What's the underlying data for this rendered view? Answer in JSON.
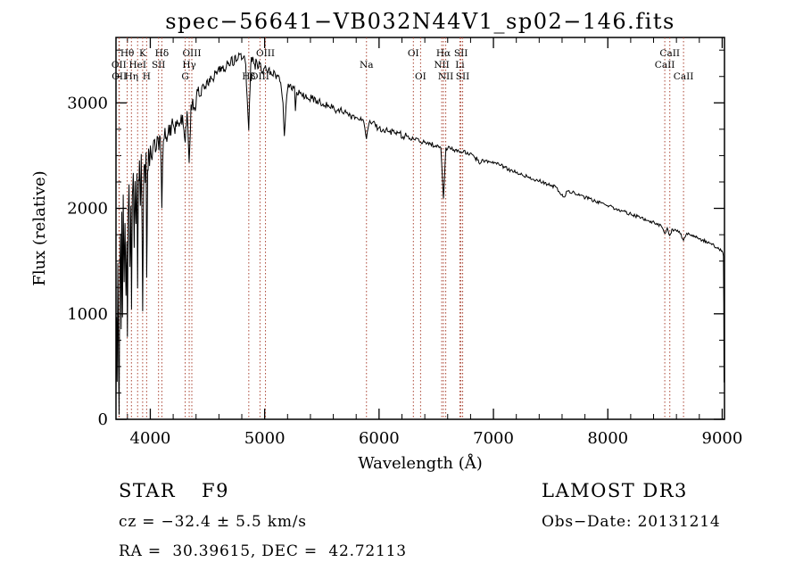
{
  "title": "spec−56641−VB032N44V1_sp02−146.fits",
  "annotations": {
    "class": "STAR",
    "subclass": "F9",
    "cz": "cz = −32.4 ± 5.5 km/s",
    "radec": "RA =  30.39615, DEC =  42.72113",
    "survey": "LAMOST DR3",
    "obs_date": "Obs−Date: 20131214"
  },
  "colors": {
    "background": "#ffffff",
    "spectrum": "#000000",
    "frame": "#000000",
    "line_marker": "#aa4433",
    "text": "#000000"
  },
  "chart_data": {
    "type": "line",
    "title": "spec−56641−VB032N44V1_sp02−146.fits",
    "xlabel": "Wavelength (Å)",
    "ylabel": "Flux (relative)",
    "xlim": [
      3700,
      9020
    ],
    "ylim": [
      0,
      3620
    ],
    "x_ticks": [
      4000,
      5000,
      6000,
      7000,
      8000,
      9000
    ],
    "y_ticks": [
      0,
      1000,
      2000,
      3000
    ],
    "x_minor_step": 200,
    "y_minor_step": 250,
    "grid": false,
    "legend": false,
    "spectral_lines": [
      {
        "wavelength": 3726,
        "label": "OII",
        "row": 2
      },
      {
        "wavelength": 3729,
        "label": "OII",
        "row": 3
      },
      {
        "wavelength": 3798,
        "label": "Hθ",
        "row": 1
      },
      {
        "wavelength": 3835,
        "label": "Hη",
        "row": 3
      },
      {
        "wavelength": 3889,
        "label": "HeI",
        "row": 2
      },
      {
        "wavelength": 3933,
        "label": "K",
        "row": 1
      },
      {
        "wavelength": 3968,
        "label": "H",
        "row": 3
      },
      {
        "wavelength": 4072,
        "label": "SII",
        "row": 2
      },
      {
        "wavelength": 4101,
        "label": "Hδ",
        "row": 1
      },
      {
        "wavelength": 4305,
        "label": "G",
        "row": 3
      },
      {
        "wavelength": 4340,
        "label": "Hγ",
        "row": 2
      },
      {
        "wavelength": 4363,
        "label": "OIII",
        "row": 1
      },
      {
        "wavelength": 4861,
        "label": "Hβ",
        "row": 3
      },
      {
        "wavelength": 4959,
        "label": "OIII",
        "row": 3
      },
      {
        "wavelength": 5007,
        "label": "OIII",
        "row": 1
      },
      {
        "wavelength": 5890,
        "label": "Na",
        "row": 2
      },
      {
        "wavelength": 6300,
        "label": "OI",
        "row": 1
      },
      {
        "wavelength": 6363,
        "label": "OI",
        "row": 3
      },
      {
        "wavelength": 6548,
        "label": "NII",
        "row": 2
      },
      {
        "wavelength": 6563,
        "label": "Hα",
        "row": 1
      },
      {
        "wavelength": 6583,
        "label": "NII",
        "row": 3
      },
      {
        "wavelength": 6707,
        "label": "Li",
        "row": 2
      },
      {
        "wavelength": 6716,
        "label": "SII",
        "row": 1
      },
      {
        "wavelength": 6731,
        "label": "SII",
        "row": 3
      },
      {
        "wavelength": 8498,
        "label": "CaII",
        "row": 2
      },
      {
        "wavelength": 8542,
        "label": "CaII",
        "row": 1
      },
      {
        "wavelength": 8662,
        "label": "CaII",
        "row": 3
      }
    ],
    "noise": {
      "seed": 12,
      "amplitude_regions": [
        {
          "x_max": 4000,
          "amp": 120
        },
        {
          "x_max": 4400,
          "amp": 80
        },
        {
          "x_max": 5000,
          "amp": 55
        },
        {
          "x_max": 5600,
          "amp": 40
        },
        {
          "x_max": 6300,
          "amp": 30
        },
        {
          "x_max": 7000,
          "amp": 24
        },
        {
          "x_max": 8000,
          "amp": 18
        },
        {
          "x_max": 9020,
          "amp": 16
        }
      ]
    },
    "series": [
      {
        "name": "spectrum",
        "color": "#000000",
        "points": [
          [
            3700,
            200
          ],
          [
            3705,
            1000
          ],
          [
            3710,
            350
          ],
          [
            3716,
            1450
          ],
          [
            3722,
            600
          ],
          [
            3727,
            80
          ],
          [
            3733,
            1250
          ],
          [
            3739,
            1750
          ],
          [
            3745,
            850
          ],
          [
            3751,
            1950
          ],
          [
            3757,
            1000
          ],
          [
            3763,
            2100
          ],
          [
            3771,
            1300
          ],
          [
            3779,
            1850
          ],
          [
            3787,
            1150
          ],
          [
            3794,
            1650
          ],
          [
            3800,
            800
          ],
          [
            3807,
            1950
          ],
          [
            3814,
            2200
          ],
          [
            3822,
            1450
          ],
          [
            3830,
            2050
          ],
          [
            3836,
            1050
          ],
          [
            3843,
            2150
          ],
          [
            3851,
            2350
          ],
          [
            3859,
            1650
          ],
          [
            3867,
            2250
          ],
          [
            3875,
            1850
          ],
          [
            3883,
            2350
          ],
          [
            3889,
            1250
          ],
          [
            3897,
            2300
          ],
          [
            3905,
            2450
          ],
          [
            3913,
            2050
          ],
          [
            3921,
            2500
          ],
          [
            3928,
            1850
          ],
          [
            3933,
            1050
          ],
          [
            3941,
            2150
          ],
          [
            3949,
            2450
          ],
          [
            3957,
            2250
          ],
          [
            3963,
            2550
          ],
          [
            3968,
            1350
          ],
          [
            3977,
            2350
          ],
          [
            3985,
            2600
          ],
          [
            3993,
            2400
          ],
          [
            4001,
            2600
          ],
          [
            4015,
            2480
          ],
          [
            4030,
            2640
          ],
          [
            4045,
            2520
          ],
          [
            4060,
            2680
          ],
          [
            4075,
            2560
          ],
          [
            4088,
            2680
          ],
          [
            4101,
            2020
          ],
          [
            4114,
            2660
          ],
          [
            4128,
            2740
          ],
          [
            4145,
            2640
          ],
          [
            4162,
            2780
          ],
          [
            4180,
            2690
          ],
          [
            4198,
            2820
          ],
          [
            4216,
            2720
          ],
          [
            4234,
            2860
          ],
          [
            4252,
            2760
          ],
          [
            4270,
            2900
          ],
          [
            4288,
            2800
          ],
          [
            4305,
            2640
          ],
          [
            4322,
            2930
          ],
          [
            4340,
            2420
          ],
          [
            4356,
            2980
          ],
          [
            4372,
            3030
          ],
          [
            4388,
            2930
          ],
          [
            4404,
            3060
          ],
          [
            4420,
            3140
          ],
          [
            4438,
            3080
          ],
          [
            4456,
            3180
          ],
          [
            4474,
            3120
          ],
          [
            4492,
            3220
          ],
          [
            4510,
            3170
          ],
          [
            4528,
            3270
          ],
          [
            4546,
            3220
          ],
          [
            4564,
            3310
          ],
          [
            4582,
            3260
          ],
          [
            4600,
            3340
          ],
          [
            4618,
            3290
          ],
          [
            4636,
            3360
          ],
          [
            4654,
            3310
          ],
          [
            4672,
            3390
          ],
          [
            4690,
            3340
          ],
          [
            4708,
            3420
          ],
          [
            4726,
            3370
          ],
          [
            4744,
            3450
          ],
          [
            4762,
            3400
          ],
          [
            4780,
            3460
          ],
          [
            4798,
            3410
          ],
          [
            4816,
            3440
          ],
          [
            4834,
            3360
          ],
          [
            4861,
            2750
          ],
          [
            4878,
            3370
          ],
          [
            4895,
            3420
          ],
          [
            4912,
            3350
          ],
          [
            4929,
            3400
          ],
          [
            4946,
            3330
          ],
          [
            4963,
            3380
          ],
          [
            4980,
            3310
          ],
          [
            5000,
            3350
          ],
          [
            5020,
            3290
          ],
          [
            5040,
            3330
          ],
          [
            5060,
            3260
          ],
          [
            5080,
            3300
          ],
          [
            5100,
            3230
          ],
          [
            5120,
            3260
          ],
          [
            5140,
            3190
          ],
          [
            5160,
            3000
          ],
          [
            5172,
            2680
          ],
          [
            5186,
            2950
          ],
          [
            5200,
            3130
          ],
          [
            5220,
            3170
          ],
          [
            5240,
            3110
          ],
          [
            5260,
            3150
          ],
          [
            5269,
            2920
          ],
          [
            5280,
            3090
          ],
          [
            5300,
            3120
          ],
          [
            5330,
            3060
          ],
          [
            5360,
            3090
          ],
          [
            5390,
            3030
          ],
          [
            5420,
            3060
          ],
          [
            5450,
            3000
          ],
          [
            5480,
            3030
          ],
          [
            5510,
            2980
          ],
          [
            5540,
            3000
          ],
          [
            5570,
            2950
          ],
          [
            5600,
            2970
          ],
          [
            5630,
            2920
          ],
          [
            5660,
            2940
          ],
          [
            5690,
            2900
          ],
          [
            5720,
            2910
          ],
          [
            5750,
            2870
          ],
          [
            5780,
            2880
          ],
          [
            5810,
            2850
          ],
          [
            5840,
            2860
          ],
          [
            5868,
            2820
          ],
          [
            5890,
            2650
          ],
          [
            5912,
            2810
          ],
          [
            5940,
            2820
          ],
          [
            5970,
            2780
          ],
          [
            6000,
            2760
          ],
          [
            6030,
            2740
          ],
          [
            6060,
            2750
          ],
          [
            6090,
            2720
          ],
          [
            6120,
            2730
          ],
          [
            6150,
            2700
          ],
          [
            6180,
            2710
          ],
          [
            6210,
            2680
          ],
          [
            6240,
            2690
          ],
          [
            6270,
            2660
          ],
          [
            6300,
            2650
          ],
          [
            6330,
            2660
          ],
          [
            6360,
            2630
          ],
          [
            6390,
            2640
          ],
          [
            6420,
            2610
          ],
          [
            6450,
            2620
          ],
          [
            6480,
            2590
          ],
          [
            6510,
            2600
          ],
          [
            6540,
            2570
          ],
          [
            6563,
            2090
          ],
          [
            6585,
            2570
          ],
          [
            6615,
            2580
          ],
          [
            6645,
            2550
          ],
          [
            6675,
            2560
          ],
          [
            6705,
            2530
          ],
          [
            6735,
            2540
          ],
          [
            6765,
            2510
          ],
          [
            6795,
            2520
          ],
          [
            6825,
            2500
          ],
          [
            6860,
            2460
          ],
          [
            6880,
            2420
          ],
          [
            6905,
            2470
          ],
          [
            6935,
            2450
          ],
          [
            6965,
            2440
          ],
          [
            7000,
            2430
          ],
          [
            7050,
            2410
          ],
          [
            7100,
            2390
          ],
          [
            7150,
            2360
          ],
          [
            7200,
            2340
          ],
          [
            7250,
            2320
          ],
          [
            7300,
            2300
          ],
          [
            7350,
            2280
          ],
          [
            7400,
            2260
          ],
          [
            7450,
            2240
          ],
          [
            7500,
            2220
          ],
          [
            7550,
            2200
          ],
          [
            7595,
            2130
          ],
          [
            7615,
            2110
          ],
          [
            7645,
            2160
          ],
          [
            7690,
            2150
          ],
          [
            7740,
            2130
          ],
          [
            7790,
            2110
          ],
          [
            7840,
            2090
          ],
          [
            7890,
            2070
          ],
          [
            7940,
            2050
          ],
          [
            7990,
            2030
          ],
          [
            8040,
            2010
          ],
          [
            8090,
            1990
          ],
          [
            8140,
            1970
          ],
          [
            8190,
            1950
          ],
          [
            8240,
            1930
          ],
          [
            8290,
            1910
          ],
          [
            8340,
            1890
          ],
          [
            8390,
            1870
          ],
          [
            8440,
            1850
          ],
          [
            8470,
            1830
          ],
          [
            8498,
            1760
          ],
          [
            8520,
            1815
          ],
          [
            8542,
            1745
          ],
          [
            8566,
            1800
          ],
          [
            8595,
            1790
          ],
          [
            8625,
            1780
          ],
          [
            8662,
            1700
          ],
          [
            8690,
            1760
          ],
          [
            8720,
            1745
          ],
          [
            8755,
            1730
          ],
          [
            8790,
            1715
          ],
          [
            8825,
            1700
          ],
          [
            8860,
            1685
          ],
          [
            8895,
            1665
          ],
          [
            8930,
            1645
          ],
          [
            8965,
            1625
          ],
          [
            9000,
            1600
          ],
          [
            9006,
            1580
          ],
          [
            9011,
            1545
          ],
          [
            9014,
            1100
          ],
          [
            9016,
            350
          ]
        ]
      }
    ]
  }
}
